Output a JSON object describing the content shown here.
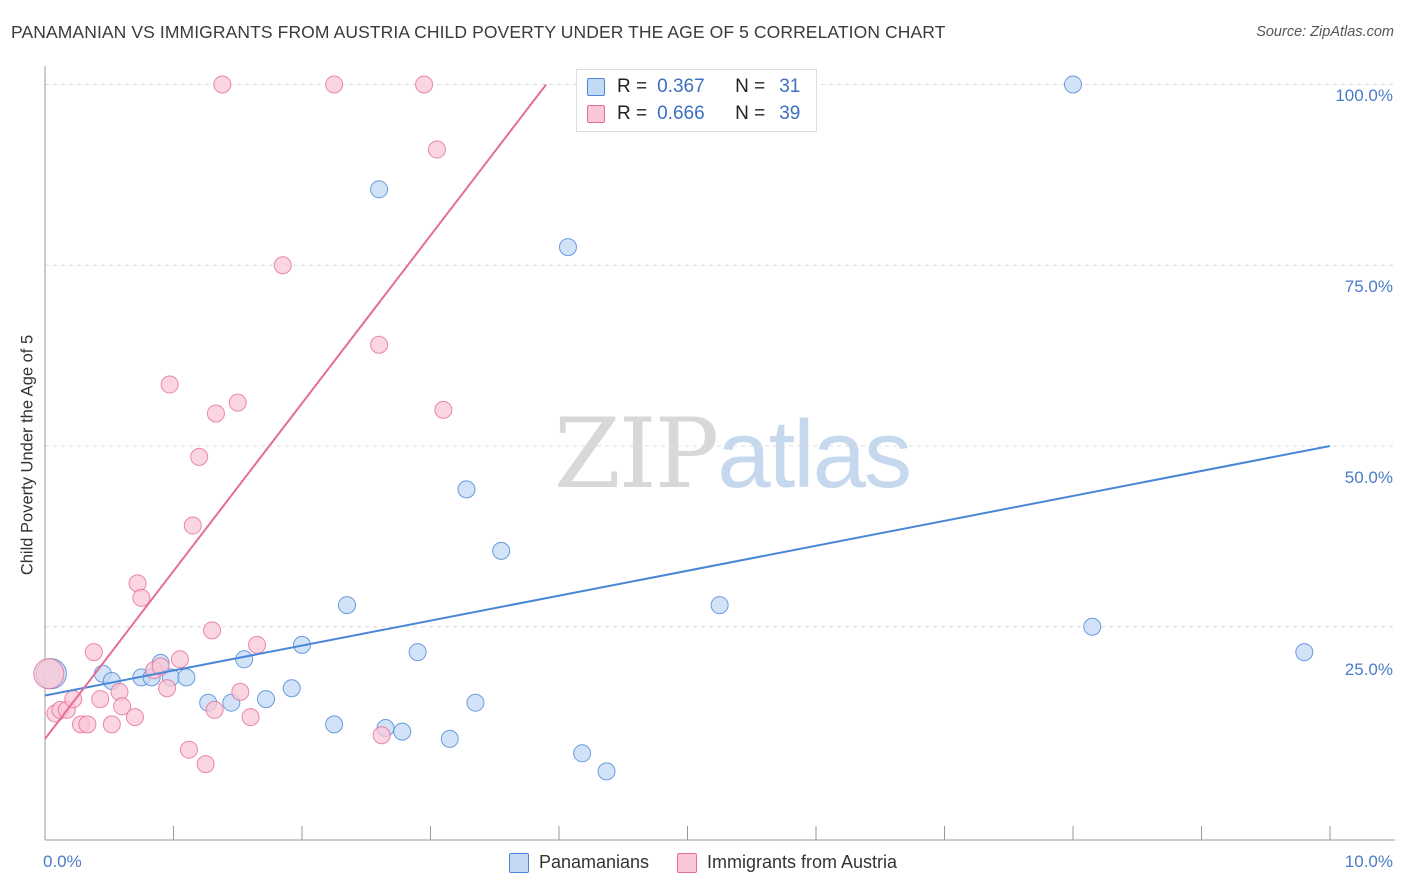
{
  "chart_data": {
    "type": "scatter",
    "title": "PANAMANIAN VS IMMIGRANTS FROM AUSTRIA CHILD POVERTY UNDER THE AGE OF 5 CORRELATION CHART",
    "source": "Source: ZipAtlas.com",
    "xlabel": "",
    "ylabel": "Child Poverty Under the Age of 5",
    "xlim": [
      0,
      10
    ],
    "ylim": [
      -2,
      102
    ],
    "x_tick_labels": [
      "0.0%",
      "10.0%"
    ],
    "y_ticks": [
      25,
      50,
      75,
      100
    ],
    "y_tick_labels": [
      "25.0%",
      "50.0%",
      "75.0%",
      "100.0%"
    ],
    "watermark": {
      "part1": "ZIP",
      "part2": "atlas"
    },
    "stats": [
      {
        "r_label": "R =",
        "r_value": "0.367",
        "n_label": "N =",
        "n_value": "31"
      },
      {
        "r_label": "R =",
        "r_value": "0.666",
        "n_label": "N =",
        "n_value": "39"
      }
    ],
    "series": [
      {
        "name": "Panamanians",
        "color": "#4a86d8",
        "fill": "#c4d9f4",
        "trend": {
          "x0": 0,
          "y0": 15.5,
          "x1": 10,
          "y1": 50
        },
        "points": [
          {
            "x": 0.05,
            "y": 18.5,
            "big": true
          },
          {
            "x": 0.45,
            "y": 18.5
          },
          {
            "x": 0.52,
            "y": 17.5
          },
          {
            "x": 0.75,
            "y": 18
          },
          {
            "x": 0.83,
            "y": 18
          },
          {
            "x": 0.9,
            "y": 20
          },
          {
            "x": 0.98,
            "y": 18
          },
          {
            "x": 1.1,
            "y": 18
          },
          {
            "x": 1.27,
            "y": 14.5
          },
          {
            "x": 1.45,
            "y": 14.5
          },
          {
            "x": 1.55,
            "y": 20.5
          },
          {
            "x": 1.72,
            "y": 15
          },
          {
            "x": 1.92,
            "y": 16.5
          },
          {
            "x": 2.0,
            "y": 22.5
          },
          {
            "x": 2.25,
            "y": 11.5
          },
          {
            "x": 2.35,
            "y": 28
          },
          {
            "x": 2.6,
            "y": 85.5
          },
          {
            "x": 2.65,
            "y": 11
          },
          {
            "x": 2.78,
            "y": 10.5
          },
          {
            "x": 2.9,
            "y": 21.5
          },
          {
            "x": 3.15,
            "y": 9.5
          },
          {
            "x": 3.28,
            "y": 44
          },
          {
            "x": 3.35,
            "y": 14.5
          },
          {
            "x": 3.55,
            "y": 35.5
          },
          {
            "x": 4.07,
            "y": 77.5
          },
          {
            "x": 4.18,
            "y": 7.5
          },
          {
            "x": 4.37,
            "y": 5
          },
          {
            "x": 5.25,
            "y": 28
          },
          {
            "x": 8.0,
            "y": 100
          },
          {
            "x": 8.15,
            "y": 25
          },
          {
            "x": 9.8,
            "y": 21.5
          }
        ]
      },
      {
        "name": "Immigrants from Austria",
        "color": "#e46e98",
        "fill": "#f9c7d6",
        "trend": {
          "x0": 0,
          "y0": 9.5,
          "x1": 3.9,
          "y1": 100
        },
        "points": [
          {
            "x": 0.03,
            "y": 18.5,
            "big": true
          },
          {
            "x": 0.08,
            "y": 13
          },
          {
            "x": 0.12,
            "y": 13.5
          },
          {
            "x": 0.17,
            "y": 13.5
          },
          {
            "x": 0.22,
            "y": 15
          },
          {
            "x": 0.28,
            "y": 11.5
          },
          {
            "x": 0.33,
            "y": 11.5
          },
          {
            "x": 0.38,
            "y": 21.5
          },
          {
            "x": 0.43,
            "y": 15
          },
          {
            "x": 0.52,
            "y": 11.5
          },
          {
            "x": 0.58,
            "y": 16
          },
          {
            "x": 0.6,
            "y": 14
          },
          {
            "x": 0.7,
            "y": 12.5
          },
          {
            "x": 0.72,
            "y": 31
          },
          {
            "x": 0.75,
            "y": 29
          },
          {
            "x": 0.85,
            "y": 19
          },
          {
            "x": 0.9,
            "y": 19.5
          },
          {
            "x": 0.95,
            "y": 16.5
          },
          {
            "x": 0.97,
            "y": 58.5
          },
          {
            "x": 1.05,
            "y": 20.5
          },
          {
            "x": 1.12,
            "y": 8
          },
          {
            "x": 1.15,
            "y": 39
          },
          {
            "x": 1.2,
            "y": 48.5
          },
          {
            "x": 1.25,
            "y": 6
          },
          {
            "x": 1.3,
            "y": 24.5
          },
          {
            "x": 1.32,
            "y": 13.5
          },
          {
            "x": 1.33,
            "y": 54.5
          },
          {
            "x": 1.38,
            "y": 100
          },
          {
            "x": 1.5,
            "y": 56
          },
          {
            "x": 1.52,
            "y": 16
          },
          {
            "x": 1.6,
            "y": 12.5
          },
          {
            "x": 1.65,
            "y": 22.5
          },
          {
            "x": 1.85,
            "y": 75
          },
          {
            "x": 2.25,
            "y": 100
          },
          {
            "x": 2.6,
            "y": 64
          },
          {
            "x": 2.62,
            "y": 10
          },
          {
            "x": 2.95,
            "y": 100
          },
          {
            "x": 3.05,
            "y": 91
          },
          {
            "x": 3.1,
            "y": 55
          }
        ]
      }
    ]
  }
}
